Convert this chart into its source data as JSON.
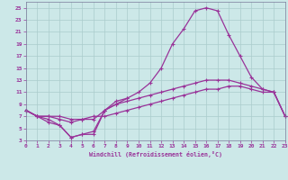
{
  "xlabel": "Windchill (Refroidissement éolien,°C)",
  "x": [
    0,
    1,
    2,
    3,
    4,
    5,
    6,
    7,
    8,
    9,
    10,
    11,
    12,
    13,
    14,
    15,
    16,
    17,
    18,
    19,
    20,
    21,
    22,
    23
  ],
  "line_peak": [
    8,
    7,
    6,
    5.5,
    3.5,
    4,
    4,
    8,
    9.5,
    10,
    11,
    12.5,
    15,
    19,
    21.5,
    24.5,
    25,
    24.5,
    20.5,
    17,
    13.5,
    11.5,
    11,
    7
  ],
  "line_mid": [
    8,
    7,
    7,
    6.5,
    6,
    6.5,
    6.5,
    8,
    9,
    9.5,
    10,
    10.5,
    11,
    11.5,
    12,
    12.5,
    13,
    13,
    13,
    12.5,
    12,
    11.5,
    11,
    7
  ],
  "line_flat": [
    8,
    7,
    7,
    7,
    6.5,
    6.5,
    7,
    7,
    7.5,
    8,
    8.5,
    9,
    9.5,
    10,
    10.5,
    11,
    11.5,
    11.5,
    12,
    12,
    11.5,
    11,
    11,
    7
  ],
  "line_dip_x": [
    0,
    1,
    2,
    3,
    4,
    5,
    6,
    7,
    8,
    9
  ],
  "line_dip_y": [
    8,
    7,
    6.5,
    5.5,
    3.5,
    4,
    4.5,
    8,
    9,
    10
  ],
  "xlim": [
    0,
    23
  ],
  "ylim": [
    3,
    26
  ],
  "yticks": [
    3,
    5,
    7,
    9,
    11,
    13,
    15,
    17,
    19,
    21,
    23,
    25
  ],
  "xticks": [
    0,
    1,
    2,
    3,
    4,
    5,
    6,
    7,
    8,
    9,
    10,
    11,
    12,
    13,
    14,
    15,
    16,
    17,
    18,
    19,
    20,
    21,
    22,
    23
  ],
  "line_color": "#993399",
  "bg_color": "#cce8e8",
  "grid_color": "#aacccc",
  "spine_color": "#7a7a9a"
}
